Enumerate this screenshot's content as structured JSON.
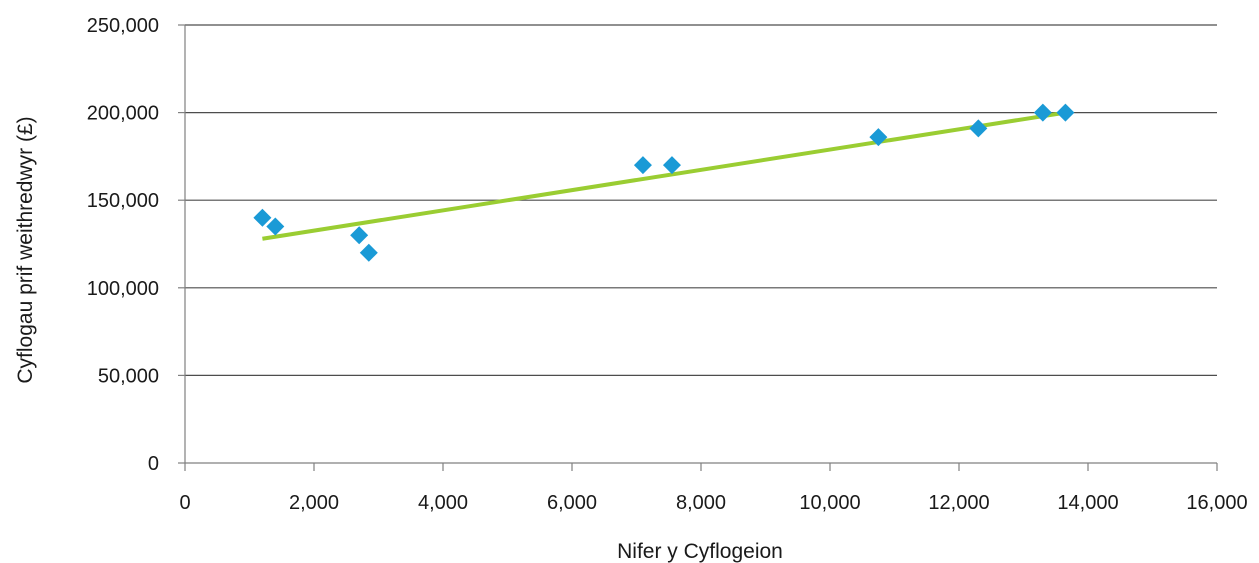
{
  "chart_data": {
    "type": "scatter",
    "xlabel": "Nifer y Cyflogeion",
    "ylabel": "Cyflogau prif weithredwyr (£)",
    "xlim": [
      0,
      16000
    ],
    "ylim": [
      0,
      250000
    ],
    "x_ticks": [
      0,
      2000,
      4000,
      6000,
      8000,
      10000,
      12000,
      14000,
      16000
    ],
    "x_tick_labels": [
      "0",
      "2,000",
      "4,000",
      "6,000",
      "8,000",
      "10,000",
      "12,000",
      "14,000",
      "16,000"
    ],
    "y_ticks": [
      0,
      50000,
      100000,
      150000,
      200000,
      250000
    ],
    "y_tick_labels": [
      "0",
      "50,000",
      "100,000",
      "150,000",
      "200,000",
      "250,000"
    ],
    "grid": "horizontal",
    "marker": "diamond",
    "colors": {
      "points": "#1a9ad6",
      "trendline": "#9acd32",
      "gridline": "#4d4d4d",
      "axis": "#808080"
    },
    "points": [
      {
        "x": 1200,
        "y": 140000
      },
      {
        "x": 1400,
        "y": 135000
      },
      {
        "x": 2700,
        "y": 130000
      },
      {
        "x": 2850,
        "y": 120000
      },
      {
        "x": 7100,
        "y": 170000
      },
      {
        "x": 7550,
        "y": 170000
      },
      {
        "x": 10750,
        "y": 186000
      },
      {
        "x": 12300,
        "y": 191000
      },
      {
        "x": 13300,
        "y": 200000
      },
      {
        "x": 13650,
        "y": 200000
      }
    ],
    "trendline": {
      "x": [
        1200,
        13650
      ],
      "y": [
        128000,
        200000
      ]
    }
  }
}
